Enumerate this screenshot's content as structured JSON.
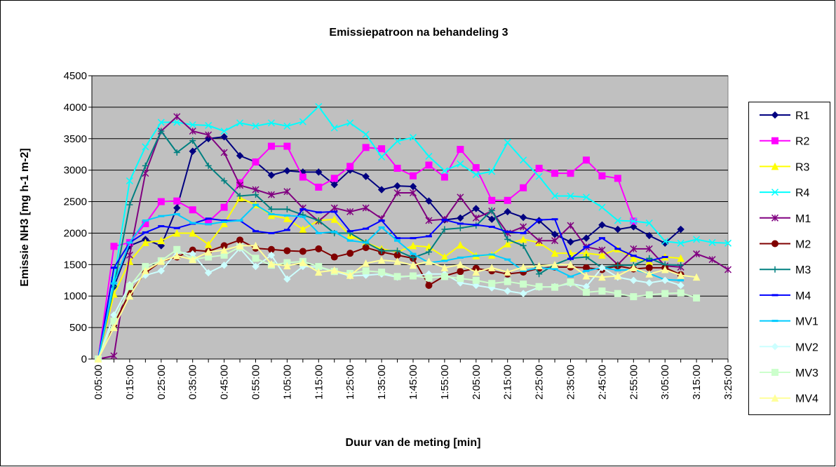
{
  "chart_data": {
    "type": "line",
    "title": "Emissiepatroon na behandeling 3",
    "ylabel": "Emissie NH3 [mg h-1 m-2]",
    "xlabel": "Duur van de meting [min]",
    "categories": [
      "0:05:00",
      null,
      "0:15:00",
      null,
      "0:25:00",
      null,
      "0:35:00",
      null,
      "0:45:00",
      null,
      "0:55:00",
      null,
      "1:05:00",
      null,
      "1:15:00",
      null,
      "1:25:00",
      null,
      "1:35:00",
      null,
      "1:45:00",
      null,
      "1:55:00",
      null,
      "2:05:00",
      null,
      "2:15:00",
      null,
      "2:25:00",
      null,
      "2:35:00",
      null,
      "2:45:00",
      null,
      "2:55:00",
      null,
      "3:05:00",
      null,
      "3:15:00",
      null,
      "3:25:00"
    ],
    "ylim": [
      0,
      4500
    ],
    "yticks": [
      0,
      500,
      1000,
      1500,
      2000,
      2500,
      3000,
      3500,
      4000,
      4500
    ],
    "grid": true,
    "legend": "right",
    "series": [
      {
        "name": "R1",
        "color": "#000080",
        "marker": "diamond",
        "values": [
          0,
          1150,
          1800,
          1900,
          1800,
          2400,
          3300,
          3500,
          3530,
          3230,
          3130,
          2920,
          2990,
          2970,
          2970,
          2770,
          3000,
          2900,
          2690,
          2750,
          2740,
          2510,
          2210,
          2240,
          2390,
          2220,
          2340,
          2250,
          2200,
          1980,
          1860,
          1920,
          2130,
          2060,
          2100,
          1960,
          1840,
          2060,
          null,
          null,
          null
        ]
      },
      {
        "name": "R2",
        "color": "#FF00FF",
        "marker": "square",
        "values": [
          0,
          1790,
          1850,
          2150,
          2500,
          2510,
          2370,
          2180,
          2410,
          2800,
          3130,
          3380,
          3380,
          2890,
          2730,
          2870,
          3060,
          3360,
          3340,
          3030,
          2910,
          3080,
          2890,
          3330,
          3040,
          2520,
          2520,
          2720,
          3030,
          2950,
          2950,
          3160,
          2910,
          2870,
          2190,
          null,
          null,
          null,
          null,
          null,
          null
        ]
      },
      {
        "name": "R3",
        "color": "#FFFF00",
        "marker": "triangle",
        "values": [
          0,
          1030,
          1550,
          1850,
          1880,
          2000,
          2000,
          1820,
          2150,
          2560,
          2450,
          2280,
          2230,
          2060,
          2200,
          2220,
          1960,
          1850,
          1750,
          1700,
          1800,
          1780,
          1620,
          1810,
          1640,
          1650,
          1830,
          1900,
          1850,
          1680,
          1680,
          1680,
          1650,
          1750,
          1600,
          1550,
          1620,
          1600,
          null,
          null,
          null
        ]
      },
      {
        "name": "R4",
        "color": "#00FFFF",
        "marker": "x",
        "values": [
          0,
          1250,
          2830,
          3370,
          3760,
          3760,
          3720,
          3710,
          3620,
          3750,
          3700,
          3750,
          3700,
          3770,
          4010,
          3670,
          3750,
          3570,
          3210,
          3460,
          3520,
          3220,
          2990,
          3100,
          2930,
          2980,
          3440,
          3160,
          2900,
          2590,
          2590,
          2570,
          2410,
          2200,
          2190,
          2160,
          1870,
          1840,
          1900,
          1850,
          1840
        ]
      },
      {
        "name": "M1",
        "color": "#800080",
        "marker": "star",
        "values": [
          0,
          50,
          1650,
          2950,
          3620,
          3850,
          3620,
          3560,
          3280,
          2760,
          2690,
          2610,
          2660,
          2400,
          2190,
          2400,
          2340,
          2400,
          2230,
          2640,
          2640,
          2200,
          2220,
          2570,
          2240,
          2350,
          2000,
          2100,
          1880,
          1880,
          2120,
          1780,
          1730,
          1500,
          1750,
          1750,
          1480,
          1460,
          1670,
          1580,
          1420
        ]
      },
      {
        "name": "M2",
        "color": "#800000",
        "marker": "circle",
        "values": [
          0,
          550,
          1050,
          1370,
          1550,
          1620,
          1730,
          1710,
          1800,
          1890,
          1760,
          1740,
          1720,
          1710,
          1750,
          1620,
          1680,
          1770,
          1700,
          1650,
          1600,
          1170,
          1320,
          1390,
          1440,
          1400,
          1350,
          1380,
          1440,
          1460,
          1460,
          1450,
          1420,
          1480,
          1430,
          1450,
          1450,
          1340,
          null,
          null,
          null
        ]
      },
      {
        "name": "M3",
        "color": "#008080",
        "marker": "plus",
        "values": [
          0,
          1150,
          2450,
          3070,
          3620,
          3280,
          3470,
          3070,
          2830,
          2590,
          2610,
          2380,
          2380,
          2290,
          2200,
          2000,
          2000,
          1850,
          1720,
          1720,
          1610,
          1700,
          2060,
          2080,
          2120,
          2360,
          1900,
          1800,
          1350,
          1500,
          1600,
          1620,
          1450,
          1490,
          1490,
          1600,
          1500,
          1490,
          null,
          null,
          null
        ]
      },
      {
        "name": "M4",
        "color": "#0000FF",
        "marker": "dash",
        "values": [
          0,
          1450,
          1850,
          2010,
          2110,
          2080,
          2150,
          2230,
          2200,
          2200,
          2030,
          2000,
          2050,
          2380,
          2330,
          2340,
          2030,
          2070,
          2200,
          1920,
          1920,
          1950,
          2210,
          2150,
          2130,
          2100,
          2020,
          2000,
          2210,
          2220,
          1590,
          1780,
          1920,
          1750,
          1640,
          1560,
          1620,
          null,
          null,
          null,
          null
        ]
      },
      {
        "name": "MV1",
        "color": "#00CCFF",
        "marker": "dash",
        "values": [
          0,
          1200,
          1850,
          2200,
          2270,
          2300,
          2160,
          2140,
          2180,
          2200,
          2450,
          2300,
          2280,
          2260,
          2000,
          2020,
          1880,
          1850,
          2090,
          1880,
          1670,
          1530,
          1560,
          1610,
          1640,
          1660,
          1580,
          1400,
          1450,
          1430,
          1310,
          1400,
          1450,
          1410,
          1420,
          1360,
          1260,
          1250,
          null,
          null,
          null
        ]
      },
      {
        "name": "MV2",
        "color": "#CCFFFF",
        "marker": "diamond",
        "values": [
          0,
          700,
          1180,
          1330,
          1400,
          1700,
          1670,
          1370,
          1490,
          1760,
          1470,
          1650,
          1270,
          1470,
          1460,
          1390,
          1320,
          1330,
          1350,
          1300,
          1320,
          1350,
          1350,
          1210,
          1170,
          1130,
          1080,
          1040,
          1140,
          1150,
          1200,
          1150,
          1450,
          1300,
          1250,
          1210,
          1250,
          1170,
          null,
          null,
          null
        ]
      },
      {
        "name": "MV3",
        "color": "#CCFFCC",
        "marker": "square",
        "values": [
          0,
          600,
          1150,
          1470,
          1560,
          1740,
          1580,
          1620,
          1650,
          1780,
          1600,
          1490,
          1530,
          1550,
          1470,
          1390,
          1360,
          1400,
          1380,
          1310,
          1320,
          1290,
          1310,
          1280,
          1250,
          1200,
          1230,
          1190,
          1150,
          1140,
          1220,
          1060,
          1080,
          1040,
          990,
          1020,
          1040,
          1050,
          970,
          null,
          null
        ]
      },
      {
        "name": "MV4",
        "color": "#FFFF99",
        "marker": "triangle",
        "values": [
          0,
          500,
          1000,
          1400,
          1550,
          1640,
          1580,
          1700,
          1730,
          1800,
          1800,
          1510,
          1480,
          1530,
          1380,
          1410,
          1330,
          1520,
          1570,
          1550,
          1490,
          1550,
          1450,
          1500,
          1380,
          1450,
          1380,
          1460,
          1480,
          1500,
          1500,
          1320,
          1300,
          1320,
          1450,
          1350,
          1420,
          1330,
          1300,
          null,
          null
        ]
      }
    ]
  }
}
